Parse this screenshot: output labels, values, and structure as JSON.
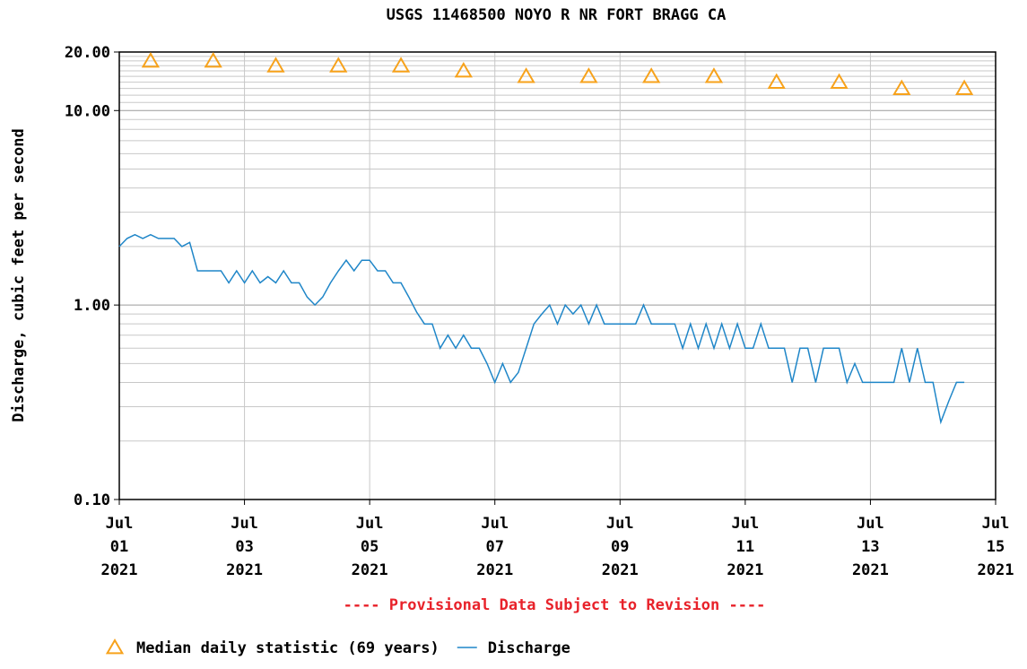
{
  "chart_data": {
    "type": "line",
    "title": "USGS 11468500 NOYO R NR FORT BRAGG CA",
    "ylabel": "Discharge, cubic feet per second",
    "note": "---- Provisional Data Subject to Revision ----",
    "note_color": "#e8222a",
    "log_y": true,
    "grid": true,
    "legend": "bottom",
    "ylim": [
      0.1,
      20
    ],
    "yticks": [
      {
        "value": 0.1,
        "label": "0.10"
      },
      {
        "value": 1,
        "label": "1.00"
      },
      {
        "value": 10,
        "label": "10.00"
      },
      {
        "value": 20,
        "label": "20.00"
      }
    ],
    "yticks_minor": [
      0.2,
      0.3,
      0.4,
      0.5,
      0.6,
      0.7,
      0.8,
      0.9,
      2,
      3,
      4,
      5,
      6,
      7,
      8,
      9,
      11,
      12,
      13,
      14,
      15,
      16,
      17,
      18,
      19
    ],
    "xlim": [
      "2021-07-01 00:00",
      "2021-07-15 00:00"
    ],
    "xticks": [
      {
        "value": "2021-07-01 00:00",
        "label": [
          "Jul",
          "01",
          "2021"
        ]
      },
      {
        "value": "2021-07-03 00:00",
        "label": [
          "Jul",
          "03",
          "2021"
        ]
      },
      {
        "value": "2021-07-05 00:00",
        "label": [
          "Jul",
          "05",
          "2021"
        ]
      },
      {
        "value": "2021-07-07 00:00",
        "label": [
          "Jul",
          "07",
          "2021"
        ]
      },
      {
        "value": "2021-07-09 00:00",
        "label": [
          "Jul",
          "09",
          "2021"
        ]
      },
      {
        "value": "2021-07-11 00:00",
        "label": [
          "Jul",
          "11",
          "2021"
        ]
      },
      {
        "value": "2021-07-13 00:00",
        "label": [
          "Jul",
          "13",
          "2021"
        ]
      },
      {
        "value": "2021-07-15 00:00",
        "label": [
          "Jul",
          "15",
          "2021"
        ]
      }
    ],
    "series": [
      {
        "name": "Median daily statistic (69 years)",
        "color": "#f7a21b",
        "marker": "triangle",
        "x": [
          "2021-07-01 12:00",
          "2021-07-02 12:00",
          "2021-07-03 12:00",
          "2021-07-04 12:00",
          "2021-07-05 12:00",
          "2021-07-06 12:00",
          "2021-07-07 12:00",
          "2021-07-08 12:00",
          "2021-07-09 12:00",
          "2021-07-10 12:00",
          "2021-07-11 12:00",
          "2021-07-12 12:00",
          "2021-07-13 12:00",
          "2021-07-14 12:00"
        ],
        "values": [
          18,
          18,
          17,
          17,
          17,
          16,
          15,
          15,
          15,
          15,
          14,
          14,
          13,
          13
        ]
      },
      {
        "name": "Discharge",
        "color": "#1f86c8",
        "marker": "line",
        "x": [
          "2021-07-01 00:00",
          "2021-07-01 03:00",
          "2021-07-01 06:00",
          "2021-07-01 09:00",
          "2021-07-01 12:00",
          "2021-07-01 15:00",
          "2021-07-01 18:00",
          "2021-07-01 21:00",
          "2021-07-02 00:00",
          "2021-07-02 03:00",
          "2021-07-02 06:00",
          "2021-07-02 09:00",
          "2021-07-02 12:00",
          "2021-07-02 15:00",
          "2021-07-02 18:00",
          "2021-07-02 21:00",
          "2021-07-03 00:00",
          "2021-07-03 03:00",
          "2021-07-03 06:00",
          "2021-07-03 09:00",
          "2021-07-03 12:00",
          "2021-07-03 15:00",
          "2021-07-03 18:00",
          "2021-07-03 21:00",
          "2021-07-04 00:00",
          "2021-07-04 03:00",
          "2021-07-04 06:00",
          "2021-07-04 09:00",
          "2021-07-04 12:00",
          "2021-07-04 15:00",
          "2021-07-04 18:00",
          "2021-07-04 21:00",
          "2021-07-05 00:00",
          "2021-07-05 03:00",
          "2021-07-05 06:00",
          "2021-07-05 09:00",
          "2021-07-05 12:00",
          "2021-07-05 15:00",
          "2021-07-05 18:00",
          "2021-07-05 21:00",
          "2021-07-06 00:00",
          "2021-07-06 03:00",
          "2021-07-06 06:00",
          "2021-07-06 09:00",
          "2021-07-06 12:00",
          "2021-07-06 15:00",
          "2021-07-06 18:00",
          "2021-07-06 21:00",
          "2021-07-07 00:00",
          "2021-07-07 03:00",
          "2021-07-07 06:00",
          "2021-07-07 09:00",
          "2021-07-07 12:00",
          "2021-07-07 15:00",
          "2021-07-07 18:00",
          "2021-07-07 21:00",
          "2021-07-08 00:00",
          "2021-07-08 03:00",
          "2021-07-08 06:00",
          "2021-07-08 09:00",
          "2021-07-08 12:00",
          "2021-07-08 15:00",
          "2021-07-08 18:00",
          "2021-07-08 21:00",
          "2021-07-09 00:00",
          "2021-07-09 03:00",
          "2021-07-09 06:00",
          "2021-07-09 09:00",
          "2021-07-09 12:00",
          "2021-07-09 15:00",
          "2021-07-09 18:00",
          "2021-07-09 21:00",
          "2021-07-10 00:00",
          "2021-07-10 03:00",
          "2021-07-10 06:00",
          "2021-07-10 09:00",
          "2021-07-10 12:00",
          "2021-07-10 15:00",
          "2021-07-10 18:00",
          "2021-07-10 21:00",
          "2021-07-11 00:00",
          "2021-07-11 03:00",
          "2021-07-11 06:00",
          "2021-07-11 09:00",
          "2021-07-11 12:00",
          "2021-07-11 15:00",
          "2021-07-11 18:00",
          "2021-07-11 21:00",
          "2021-07-12 00:00",
          "2021-07-12 03:00",
          "2021-07-12 06:00",
          "2021-07-12 09:00",
          "2021-07-12 12:00",
          "2021-07-12 15:00",
          "2021-07-12 18:00",
          "2021-07-12 21:00",
          "2021-07-13 00:00",
          "2021-07-13 03:00",
          "2021-07-13 06:00",
          "2021-07-13 09:00",
          "2021-07-13 12:00",
          "2021-07-13 15:00",
          "2021-07-13 18:00",
          "2021-07-13 21:00",
          "2021-07-14 00:00",
          "2021-07-14 03:00",
          "2021-07-14 06:00",
          "2021-07-14 09:00",
          "2021-07-14 12:00"
        ],
        "values": [
          2.0,
          2.2,
          2.3,
          2.2,
          2.3,
          2.2,
          2.2,
          2.2,
          2.0,
          2.1,
          1.5,
          1.5,
          1.5,
          1.5,
          1.3,
          1.5,
          1.3,
          1.5,
          1.3,
          1.4,
          1.3,
          1.5,
          1.3,
          1.3,
          1.1,
          1.0,
          1.1,
          1.3,
          1.5,
          1.7,
          1.5,
          1.7,
          1.7,
          1.5,
          1.5,
          1.3,
          1.3,
          1.1,
          0.92,
          0.8,
          0.8,
          0.6,
          0.7,
          0.6,
          0.7,
          0.6,
          0.6,
          0.5,
          0.4,
          0.5,
          0.4,
          0.45,
          0.6,
          0.8,
          0.9,
          1.0,
          0.8,
          1.0,
          0.9,
          1.0,
          0.8,
          1.0,
          0.8,
          0.8,
          0.8,
          0.8,
          0.8,
          1.0,
          0.8,
          0.8,
          0.8,
          0.8,
          0.6,
          0.8,
          0.6,
          0.8,
          0.6,
          0.8,
          0.6,
          0.8,
          0.6,
          0.6,
          0.8,
          0.6,
          0.6,
          0.6,
          0.4,
          0.6,
          0.6,
          0.4,
          0.6,
          0.6,
          0.6,
          0.4,
          0.5,
          0.4,
          0.4,
          0.4,
          0.4,
          0.4,
          0.6,
          0.4,
          0.6,
          0.4,
          0.4,
          0.25,
          0.32,
          0.4,
          0.4
        ]
      }
    ]
  }
}
